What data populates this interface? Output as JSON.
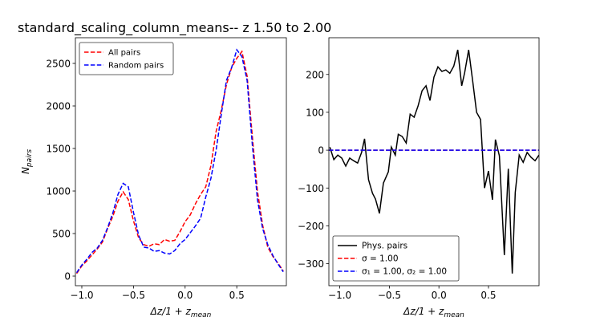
{
  "chart_data": [
    {
      "type": "line",
      "title": "standard_scaling_column_means-- z 1.50 to 2.00",
      "xlabel": "Δz/1 + z",
      "xlabel_sub": "mean",
      "ylabel": "N",
      "ylabel_sub": "pairs",
      "xlim": [
        -1.062,
        0.98
      ],
      "ylim": [
        -113,
        2802
      ],
      "xticks": [
        {
          "value": -1.0,
          "label": "−1.0"
        },
        {
          "value": -0.5,
          "label": "−0.5"
        },
        {
          "value": 0.0,
          "label": "0.0"
        },
        {
          "value": 0.5,
          "label": "0.5"
        }
      ],
      "yticks": [
        0,
        500,
        1000,
        1500,
        2000,
        2500
      ],
      "legend": "upper left",
      "x": [
        -1.05,
        -1.0,
        -0.95,
        -0.9,
        -0.85,
        -0.8,
        -0.75,
        -0.7,
        -0.65,
        -0.6,
        -0.55,
        -0.5,
        -0.45,
        -0.4,
        -0.35,
        -0.3,
        -0.25,
        -0.2,
        -0.15,
        -0.1,
        -0.05,
        0.0,
        0.05,
        0.1,
        0.15,
        0.2,
        0.25,
        0.3,
        0.35,
        0.4,
        0.45,
        0.5,
        0.55,
        0.6,
        0.65,
        0.7,
        0.75,
        0.8,
        0.85,
        0.9,
        0.95
      ],
      "series": [
        {
          "name": "All pairs",
          "color": "#ff0000",
          "linestyle": "--",
          "values": [
            30,
            120,
            180,
            250,
            320,
            400,
            560,
            700,
            880,
            990,
            900,
            650,
            450,
            370,
            350,
            380,
            370,
            430,
            410,
            420,
            520,
            640,
            720,
            850,
            960,
            1050,
            1300,
            1700,
            1950,
            2250,
            2450,
            2560,
            2640,
            2350,
            1650,
            1000,
            600,
            340,
            230,
            150,
            60
          ]
        },
        {
          "name": "Random pairs",
          "color": "#0000ff",
          "linestyle": "--",
          "values": [
            40,
            130,
            200,
            280,
            330,
            420,
            570,
            740,
            960,
            1090,
            1050,
            750,
            480,
            340,
            330,
            290,
            300,
            270,
            260,
            300,
            380,
            430,
            510,
            590,
            680,
            930,
            1150,
            1480,
            1900,
            2300,
            2450,
            2660,
            2580,
            2300,
            1550,
            900,
            560,
            370,
            240,
            140,
            50
          ]
        }
      ]
    },
    {
      "type": "line",
      "xlabel": "Δz/1 + z",
      "xlabel_sub": "mean",
      "xlim": [
        -1.11,
        1.01
      ],
      "ylim": [
        -358,
        297
      ],
      "xticks": [
        {
          "value": -1.0,
          "label": "−1.0"
        },
        {
          "value": -0.5,
          "label": "−0.5"
        },
        {
          "value": 0.0,
          "label": "0.0"
        },
        {
          "value": 0.5,
          "label": "0.5"
        }
      ],
      "yticks": [
        {
          "value": -300,
          "label": "−300"
        },
        {
          "value": -200,
          "label": "−200"
        },
        {
          "value": -100,
          "label": "−100"
        },
        0,
        100,
        200
      ],
      "legend": "lower left",
      "series": [
        {
          "name": "Phys. pairs",
          "color": "#000000",
          "linestyle": "-",
          "x": [
            -1.1,
            -1.06,
            -1.02,
            -0.98,
            -0.94,
            -0.9,
            -0.86,
            -0.82,
            -0.78,
            -0.75,
            -0.71,
            -0.67,
            -0.64,
            -0.6,
            -0.56,
            -0.51,
            -0.48,
            -0.44,
            -0.41,
            -0.37,
            -0.33,
            -0.29,
            -0.25,
            -0.21,
            -0.17,
            -0.13,
            -0.09,
            -0.05,
            -0.01,
            0.03,
            0.07,
            0.11,
            0.15,
            0.19,
            0.23,
            0.26,
            0.3,
            0.34,
            0.38,
            0.42,
            0.46,
            0.5,
            0.54,
            0.57,
            0.61,
            0.66,
            0.7,
            0.74,
            0.77,
            0.81,
            0.85,
            0.89,
            0.93,
            0.97,
            1.01
          ],
          "values": [
            8,
            -25,
            -13,
            -21,
            -42,
            -21,
            -28,
            -34,
            -6,
            30,
            -78,
            -114,
            -129,
            -167,
            -87,
            -57,
            8,
            -13,
            42,
            36,
            19,
            95,
            87,
            117,
            157,
            170,
            131,
            193,
            220,
            208,
            212,
            203,
            222,
            265,
            170,
            205,
            265,
            184,
            100,
            81,
            -100,
            -55,
            -131,
            28,
            -15,
            -277,
            -49,
            -326,
            -112,
            -13,
            -32,
            -6,
            -19,
            -28,
            -13
          ]
        },
        {
          "name": "σ =  1.00",
          "color": "#ff0000",
          "linestyle": "--",
          "x": [
            -1.11,
            1.01
          ],
          "values": [
            0,
            0
          ]
        },
        {
          "name": "σ₁ =  1.00, σ₂ =  1.00",
          "color": "#0000ff",
          "linestyle": "--",
          "x": [
            -1.11,
            1.01
          ],
          "values": [
            0,
            0
          ]
        }
      ]
    }
  ]
}
